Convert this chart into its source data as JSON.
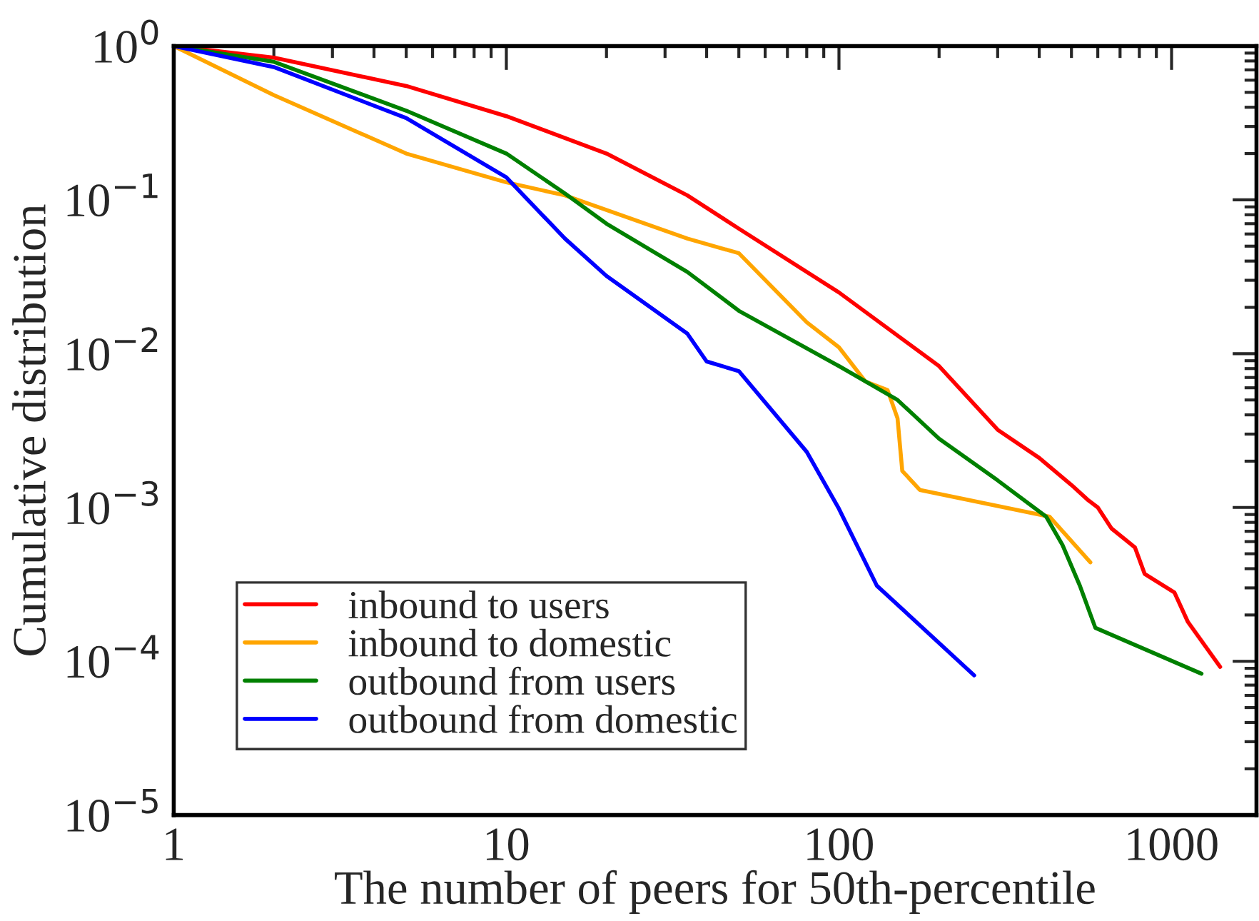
{
  "chart_data": {
    "type": "line",
    "xlabel": "The number of peers for 50th-percentile",
    "ylabel": "Cumulative distribution",
    "log": "xy",
    "grid": false,
    "legend": "lower left",
    "line_style": "solid",
    "marker": "none",
    "xlim": [
      1,
      1800
    ],
    "xticks": [
      1,
      10,
      100,
      1000
    ],
    "ylim": [
      1e-05,
      1
    ],
    "yticks": [
      {
        "value": 1,
        "label": "10$^{0}$"
      },
      {
        "value": 0.1,
        "label": "10$^{−1}$"
      },
      {
        "value": 0.01,
        "label": "10$^{−2}$"
      },
      {
        "value": 0.001,
        "label": "10$^{−3}$"
      },
      {
        "value": 0.0001,
        "label": "10$^{−4}$"
      },
      {
        "value": 1e-05,
        "label": "10$^{−5}$"
      }
    ],
    "series": [
      {
        "name": "inbound to users",
        "color": "#ff0000",
        "x": [
          1,
          2,
          5,
          10,
          20,
          35,
          50,
          100,
          200,
          300,
          400,
          500,
          560,
          600,
          660,
          776,
          830,
          1020,
          1120,
          1400
        ],
        "values": [
          1,
          0.84,
          0.55,
          0.35,
          0.2,
          0.107,
          0.065,
          0.025,
          0.0083,
          0.0032,
          0.0021,
          0.0014,
          0.00112,
          0.001,
          0.00073,
          0.00055,
          0.00037,
          0.00028,
          0.00018,
          9.2e-05
        ]
      },
      {
        "name": "inbound to domestic",
        "color": "#ffa500",
        "x": [
          1,
          2,
          5,
          10,
          15,
          20,
          35,
          50,
          80,
          100,
          120,
          140,
          150,
          155,
          175,
          430,
          570
        ],
        "values": [
          1,
          0.48,
          0.2,
          0.13,
          0.107,
          0.086,
          0.056,
          0.045,
          0.016,
          0.011,
          0.0066,
          0.0058,
          0.0038,
          0.00173,
          0.0013,
          0.00087,
          0.00044
        ]
      },
      {
        "name": "outbound from users",
        "color": "#008000",
        "x": [
          1,
          2,
          5,
          10,
          15,
          20,
          35,
          50,
          100,
          150,
          200,
          300,
          420,
          470,
          530,
          590,
          1230
        ],
        "values": [
          1,
          0.79,
          0.38,
          0.2,
          0.11,
          0.07,
          0.034,
          0.019,
          0.0083,
          0.005,
          0.0028,
          0.0015,
          0.00087,
          0.00057,
          0.00031,
          0.000165,
          8.3e-05
        ]
      },
      {
        "name": "outbound from domestic",
        "color": "#0000ff",
        "x": [
          1,
          2,
          5,
          10,
          15,
          20,
          35,
          40,
          50,
          80,
          100,
          130,
          255
        ],
        "values": [
          1,
          0.73,
          0.34,
          0.14,
          0.056,
          0.032,
          0.0135,
          0.0089,
          0.0077,
          0.0023,
          0.00098,
          0.00031,
          8.1e-05
        ]
      }
    ]
  }
}
